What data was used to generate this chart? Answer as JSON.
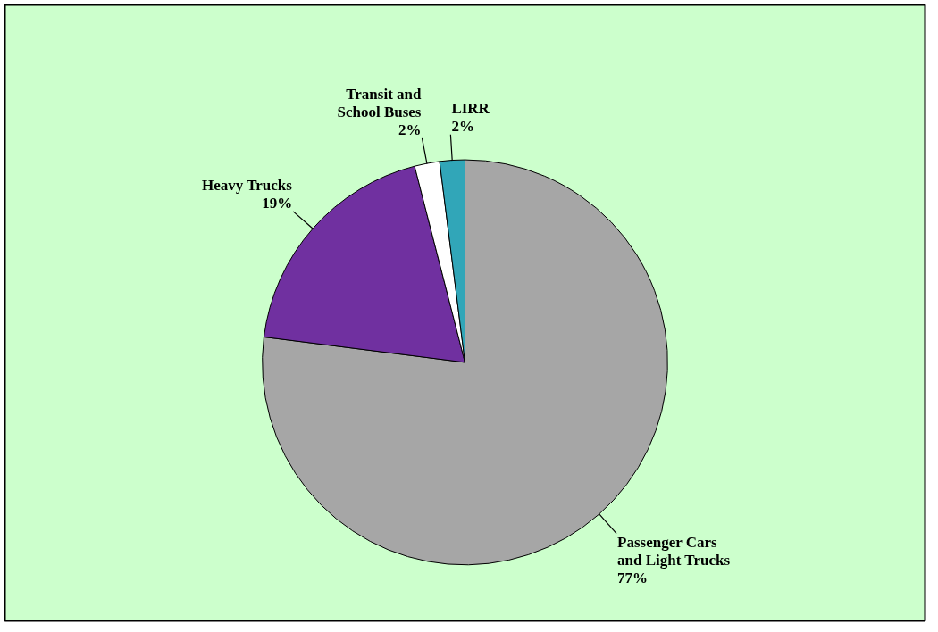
{
  "chart_data": {
    "type": "pie",
    "categories": [
      "Passenger Cars and Light Trucks",
      "Heavy Trucks",
      "Transit and School Buses",
      "LIRR"
    ],
    "values": [
      77,
      19,
      2,
      2
    ],
    "colors": [
      "#a6a6a6",
      "#7030a0",
      "#ffffff",
      "#31a6b8"
    ],
    "value_labels": [
      "77%",
      "19%",
      "2%",
      "2%"
    ]
  }
}
